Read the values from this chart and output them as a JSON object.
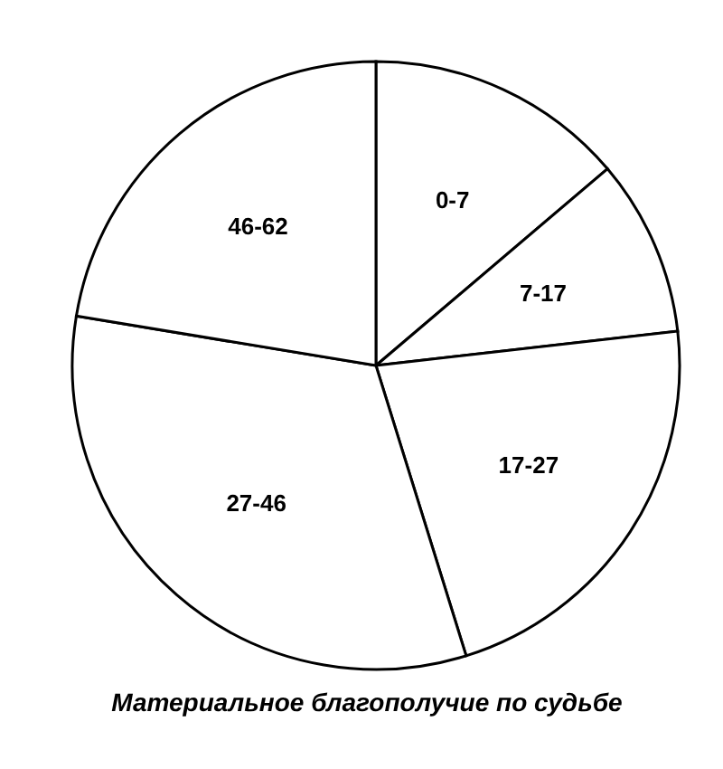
{
  "chart_data": {
    "type": "pie",
    "title": "Материальное благополучие по судьбе",
    "categories": [
      "0-7",
      "7-17",
      "17-27",
      "27-46",
      "46-62"
    ],
    "values": [
      13.8,
      9.4,
      22.0,
      32.4,
      22.4
    ],
    "colors": [
      "#ffffff",
      "#ffffff",
      "#ffffff",
      "#ffffff",
      "#ffffff"
    ],
    "legend": false
  }
}
